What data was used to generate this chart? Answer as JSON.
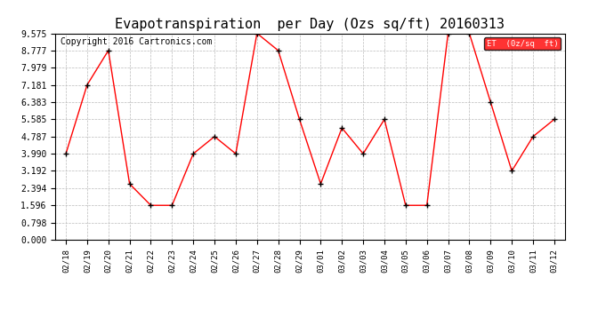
{
  "title": "Evapotranspiration  per Day (Ozs sq/ft) 20160313",
  "copyright": "Copyright 2016 Cartronics.com",
  "legend_label": "ET  (0z/sq  ft)",
  "dates": [
    "02/18",
    "02/19",
    "02/20",
    "02/21",
    "02/22",
    "02/23",
    "02/24",
    "02/25",
    "02/26",
    "02/27",
    "02/28",
    "02/29",
    "03/01",
    "03/02",
    "03/03",
    "03/04",
    "03/05",
    "03/06",
    "03/07",
    "03/08",
    "03/09",
    "03/10",
    "03/11",
    "03/12"
  ],
  "values": [
    3.99,
    7.181,
    8.777,
    2.594,
    1.596,
    1.596,
    3.99,
    4.787,
    3.99,
    9.575,
    8.777,
    5.585,
    2.594,
    5.186,
    3.99,
    5.585,
    1.596,
    1.596,
    9.575,
    9.575,
    6.383,
    3.192,
    4.787,
    5.585
  ],
  "yticks": [
    0.0,
    0.798,
    1.596,
    2.394,
    3.192,
    3.99,
    4.787,
    5.585,
    6.383,
    7.181,
    7.979,
    8.777,
    9.575
  ],
  "line_color": "red",
  "marker_color": "black",
  "background_color": "white",
  "grid_color": "#bbbbbb",
  "legend_bg": "red",
  "legend_text_color": "white",
  "title_fontsize": 11,
  "copyright_fontsize": 7,
  "tick_fontsize": 6.5,
  "ytick_fontsize": 7
}
